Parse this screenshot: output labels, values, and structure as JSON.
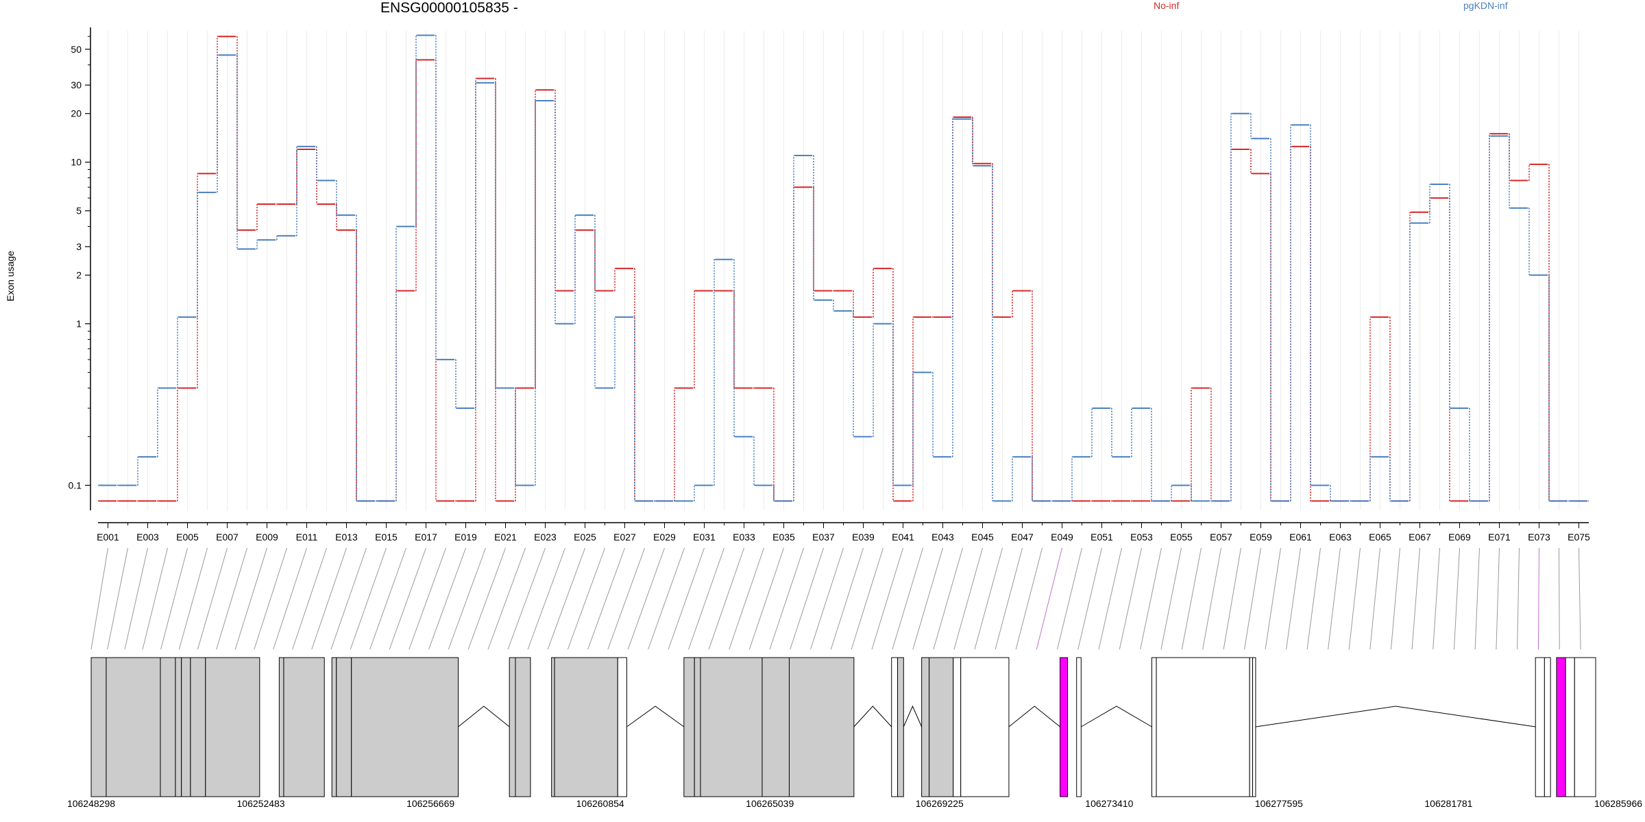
{
  "chart_data": {
    "type": "line",
    "title": "ENSG00000105835 -",
    "xlabel": "",
    "ylabel": "Exon usage",
    "yscale": "log",
    "ylim": [
      0.07,
      65
    ],
    "yticks": [
      0.1,
      1,
      2,
      3,
      5,
      10,
      20,
      30,
      50
    ],
    "ytick_labels": [
      "0.1",
      "1",
      "2",
      "3",
      "5",
      "10",
      "20",
      "30",
      "50"
    ],
    "categories": [
      "E001",
      "E002",
      "E003",
      "E004",
      "E005",
      "E006",
      "E007",
      "E008",
      "E009",
      "E010",
      "E011",
      "E012",
      "E013",
      "E014",
      "E015",
      "E016",
      "E017",
      "E018",
      "E019",
      "E020",
      "E021",
      "E022",
      "E023",
      "E024",
      "E025",
      "E026",
      "E027",
      "E028",
      "E029",
      "E030",
      "E031",
      "E032",
      "E033",
      "E034",
      "E035",
      "E036",
      "E037",
      "E038",
      "E039",
      "E040",
      "E041",
      "E042",
      "E043",
      "E044",
      "E045",
      "E046",
      "E047",
      "E048",
      "E049",
      "E050",
      "E051",
      "E052",
      "E053",
      "E054",
      "E055",
      "E056",
      "E057",
      "E058",
      "E059",
      "E060",
      "E061",
      "E062",
      "E063",
      "E064",
      "E065",
      "E066",
      "E067",
      "E068",
      "E069",
      "E070",
      "E071",
      "E072",
      "E073",
      "E074",
      "E075"
    ],
    "x_tick_labels": [
      "E001",
      "E003",
      "E005",
      "E007",
      "E009",
      "E011",
      "E013",
      "E015",
      "E017",
      "E019",
      "E021",
      "E023",
      "E025",
      "E027",
      "E029",
      "E031",
      "E033",
      "E035",
      "E037",
      "E039",
      "E041",
      "E043",
      "E045",
      "E047",
      "E049",
      "E051",
      "E053",
      "E055",
      "E057",
      "E059",
      "E061",
      "E063",
      "E065",
      "E067",
      "E069",
      "E071",
      "E073",
      "E075"
    ],
    "legend": "top",
    "series": [
      {
        "name": "No-inf",
        "color": "#d62728",
        "values": [
          0.08,
          0.08,
          0.08,
          0.08,
          0.4,
          8.5,
          60,
          3.8,
          5.5,
          5.5,
          12,
          5.5,
          3.8,
          0.08,
          0.08,
          1.6,
          43,
          0.08,
          0.08,
          33,
          0.08,
          0.4,
          28,
          1.6,
          3.8,
          1.6,
          2.2,
          0.08,
          0.08,
          0.4,
          1.6,
          1.6,
          0.4,
          0.4,
          0.08,
          7,
          1.6,
          1.6,
          1.1,
          2.2,
          0.08,
          1.1,
          1.1,
          19,
          9.8,
          1.1,
          1.6,
          0.08,
          0.08,
          0.08,
          0.08,
          0.08,
          0.08,
          0.08,
          0.08,
          0.4,
          0.08,
          12,
          8.5,
          0.08,
          12.5,
          0.08,
          0.08,
          0.08,
          1.1,
          0.08,
          4.9,
          6,
          0.08,
          0.08,
          15,
          7.7,
          9.7,
          0.08,
          0.08
        ]
      },
      {
        "name": "pgKDN-inf",
        "color": "#4a7fbf",
        "values": [
          0.1,
          0.1,
          0.15,
          0.4,
          1.1,
          6.5,
          46,
          2.9,
          3.3,
          3.5,
          12.5,
          7.7,
          4.7,
          0.08,
          0.08,
          4,
          61,
          0.6,
          0.3,
          31,
          0.4,
          0.1,
          24,
          1,
          4.7,
          0.4,
          1.1,
          0.08,
          0.08,
          0.08,
          0.1,
          2.5,
          0.2,
          0.1,
          0.08,
          11,
          1.4,
          1.2,
          0.2,
          1,
          0.1,
          0.5,
          0.15,
          18.5,
          9.5,
          0.08,
          0.15,
          0.08,
          0.08,
          0.15,
          0.3,
          0.15,
          0.3,
          0.08,
          0.1,
          0.08,
          0.08,
          20,
          14,
          0.08,
          17,
          0.1,
          0.08,
          0.08,
          0.15,
          0.08,
          4.2,
          7.3,
          0.3,
          0.08,
          14.5,
          5.2,
          2,
          0.08,
          0.08
        ]
      }
    ],
    "coordinate_ticks": [
      "106248298",
      "106252483",
      "106256669",
      "106260854",
      "106265039",
      "106269225",
      "106273410",
      "106277595",
      "106281781",
      "106285966"
    ],
    "gene_model": {
      "exon_fill": "#cccccc",
      "highlight_fill": "#ff00ff",
      "line_color": "#000000"
    }
  }
}
